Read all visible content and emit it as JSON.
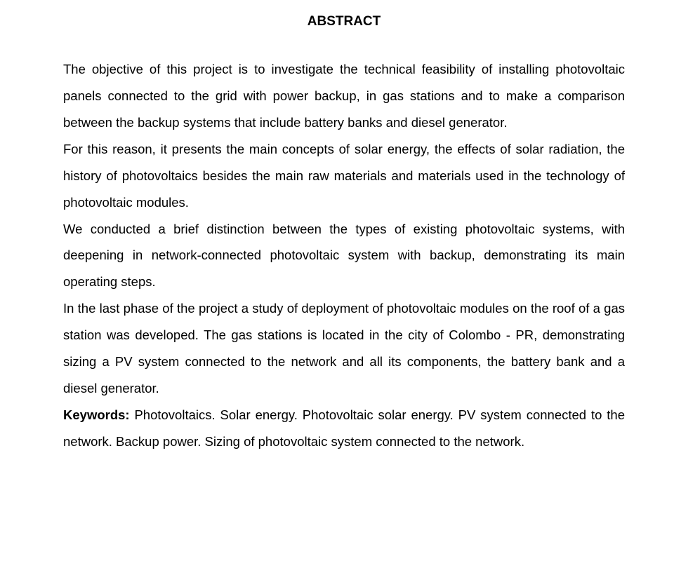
{
  "title": "ABSTRACT",
  "paragraphs": {
    "p1": "The objective of this project is to investigate the technical feasibility of installing photovoltaic panels connected to the grid with power backup, in gas stations and to make a comparison between the backup systems that include battery banks and diesel generator.",
    "p2": "For this reason, it presents the main concepts of solar energy, the effects of solar radiation, the history of photovoltaics besides the main raw materials and materials used in the technology of photovoltaic modules.",
    "p3": "We conducted a brief distinction between the types of existing photovoltaic systems, with deepening in network-connected photovoltaic system with backup, demonstrating its main operating steps.",
    "p4": "In the last phase of the project a study of deployment of photovoltaic modules on the roof of a gas station was developed. The gas stations is located in the city of Colombo - PR, demonstrating sizing a PV system connected to the network and all its components, the battery bank and a diesel generator."
  },
  "keywords": {
    "label": "Keywords:",
    "text": " Photovoltaics. Solar energy. Photovoltaic solar energy. PV system connected to the network. Backup power. Sizing of photovoltaic system connected to the network."
  },
  "style": {
    "background_color": "#ffffff",
    "text_color": "#000000",
    "title_fontsize": 19,
    "body_fontsize": 18.5,
    "line_height": 2.05,
    "font_family": "Arial"
  }
}
